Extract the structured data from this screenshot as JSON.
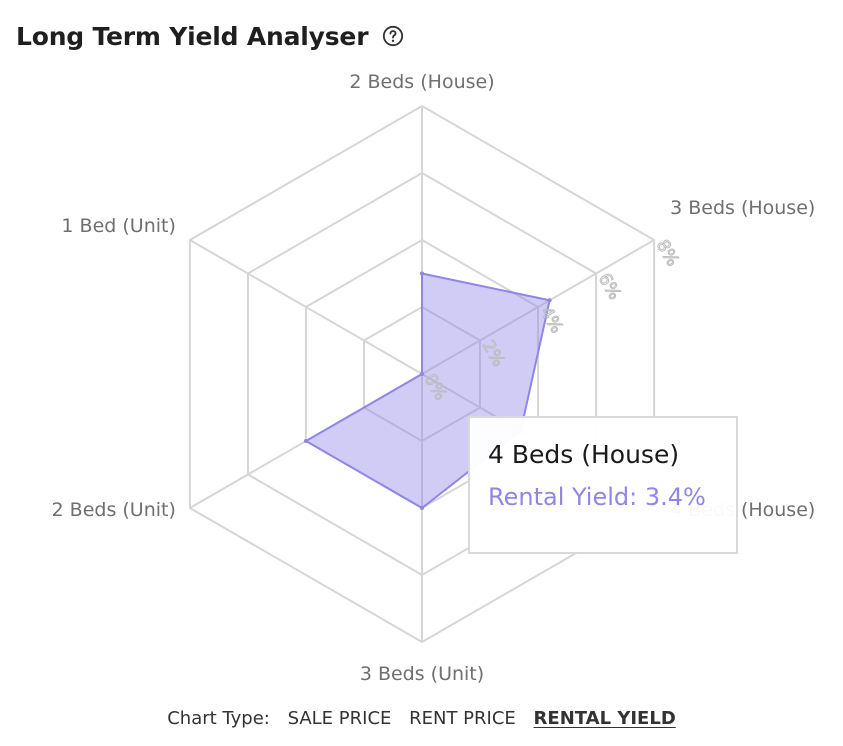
{
  "header": {
    "title": "Long Term Yield Analyser",
    "help_icon": "question-circle-icon"
  },
  "chart_data": {
    "type": "radar",
    "categories": [
      "2 Beds (House)",
      "3 Beds (House)",
      "4 Beds (House)",
      "3 Beds (Unit)",
      "2 Beds (Unit)",
      "1 Bed (Unit)"
    ],
    "series": [
      {
        "values": [
          3.0,
          4.4,
          3.4,
          4.0,
          4.0,
          0
        ]
      }
    ],
    "rlim": [
      0,
      8
    ],
    "ticks": [
      "0%",
      "2%",
      "4%",
      "6%",
      "8%"
    ],
    "series_color": "#8f86e6"
  },
  "tooltip": {
    "title": "4 Beds (House)",
    "value": "Rental Yield: 3.4%"
  },
  "chart_type": {
    "label": "Chart Type:",
    "options": [
      "SALE PRICE",
      "RENT PRICE",
      "RENTAL YIELD"
    ],
    "active": "RENTAL YIELD"
  }
}
